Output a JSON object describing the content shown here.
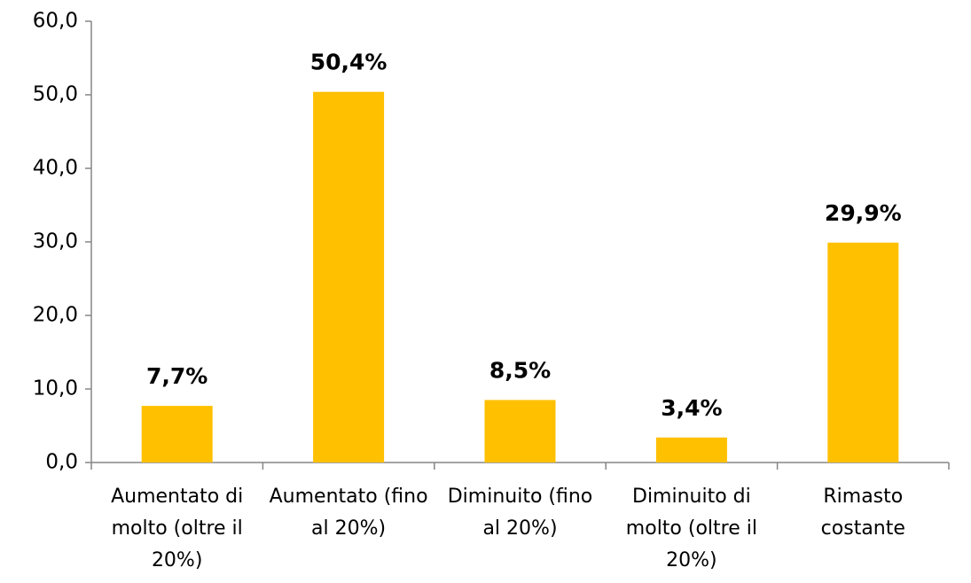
{
  "chart_data": {
    "type": "bar",
    "categories": [
      "Aumentato di molto (oltre il 20%)",
      "Aumentato (fino al 20%)",
      "Diminuito (fino al 20%)",
      "Diminuito di molto (oltre il 20%)",
      "Rimasto costante"
    ],
    "values": [
      7.7,
      50.4,
      8.5,
      3.4,
      29.9
    ],
    "value_labels": [
      "7,7%",
      "50,4%",
      "8,5%",
      "3,4%",
      "29,9%"
    ],
    "color": "#ffc000",
    "ylim": [
      0,
      60
    ],
    "yticks": [
      {
        "value": 0,
        "label": "0,0"
      },
      {
        "value": 10,
        "label": "10,0"
      },
      {
        "value": 20,
        "label": "20,0"
      },
      {
        "value": 30,
        "label": "30,0"
      },
      {
        "value": 40,
        "label": "40,0"
      },
      {
        "value": 50,
        "label": "50,0"
      },
      {
        "value": 60,
        "label": "60,0"
      }
    ],
    "grid": false
  }
}
